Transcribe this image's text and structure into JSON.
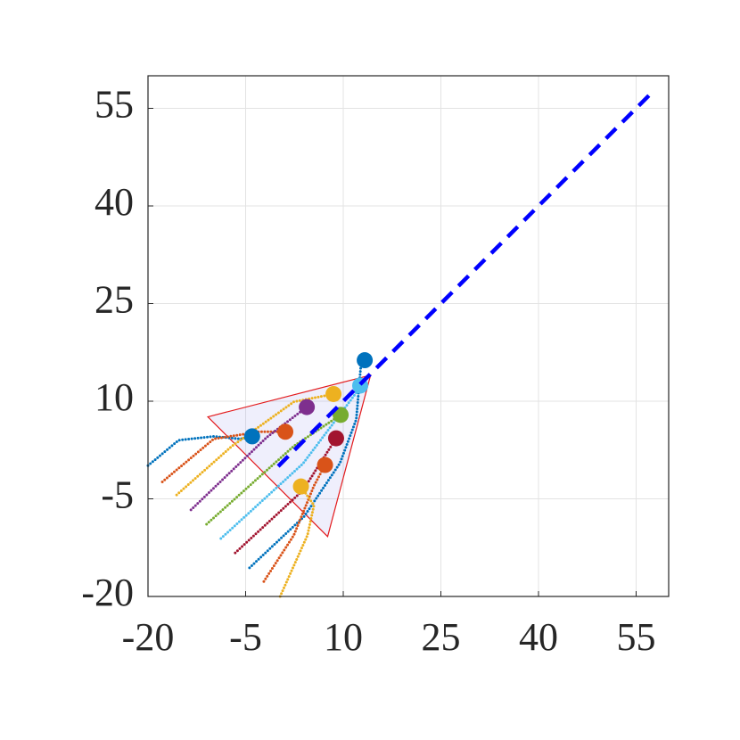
{
  "chart_data": {
    "type": "trajectory",
    "xlim": [
      -20,
      60
    ],
    "ylim": [
      -20,
      60
    ],
    "xticks": [
      -20,
      -5,
      10,
      25,
      40,
      55
    ],
    "yticks": [
      -20,
      -5,
      10,
      25,
      40,
      55
    ],
    "grid": true,
    "reference": {
      "color": "#0000ff",
      "x": [
        0,
        57
      ],
      "y": [
        0,
        57
      ]
    },
    "region": {
      "color": "#e31a1c",
      "x": [
        -10.8,
        14.2,
        7.6
      ],
      "y": [
        7.6,
        14.0,
        -10.8
      ]
    },
    "series": [
      {
        "color": "#0072BD",
        "x": [
          -20,
          -15.3,
          -9.9,
          -5.8,
          -4
        ],
        "y": [
          0.1,
          4,
          4.6,
          4.2,
          4.6
        ]
      },
      {
        "color": "#0072BD",
        "x": [
          -4.4,
          4,
          9.5,
          12,
          12.7,
          13.3
        ],
        "y": [
          -15.6,
          -7.7,
          0.5,
          7.2,
          15.4,
          16.3
        ]
      },
      {
        "color": "#D95319",
        "x": [
          -17.8,
          -9.9,
          -3,
          1.1
        ],
        "y": [
          -2.4,
          4.2,
          5.3,
          5.3
        ]
      },
      {
        "color": "#D95319",
        "x": [
          -2.2,
          2.4,
          5.5,
          7.2
        ],
        "y": [
          -17.7,
          -10.6,
          -3,
          0.2
        ]
      },
      {
        "color": "#EDB120",
        "x": [
          -15.6,
          -7.1,
          2.4,
          8.5
        ],
        "y": [
          -4.4,
          3.1,
          9.9,
          11.1
        ]
      },
      {
        "color": "#EDB120",
        "x": [
          0.3,
          4.5,
          5.5,
          3.5
        ],
        "y": [
          -20,
          -10.6,
          -6,
          -3.1
        ]
      },
      {
        "color": "#7E2F8E",
        "x": [
          -13.4,
          -1.7,
          4.4
        ],
        "y": [
          -6.7,
          4.5,
          9.1
        ]
      },
      {
        "color": "#77AC30",
        "x": [
          -11,
          2.4,
          9.6
        ],
        "y": [
          -8.9,
          3.1,
          7.9
        ]
      },
      {
        "color": "#4DBEEE",
        "x": [
          -8.8,
          3.8,
          12,
          12.6
        ],
        "y": [
          -11.1,
          0.4,
          11.3,
          12.4
        ]
      },
      {
        "color": "#A2142F",
        "x": [
          -6.6,
          3.8,
          8.9
        ],
        "y": [
          -13.3,
          -3.7,
          4.3
        ]
      }
    ]
  }
}
